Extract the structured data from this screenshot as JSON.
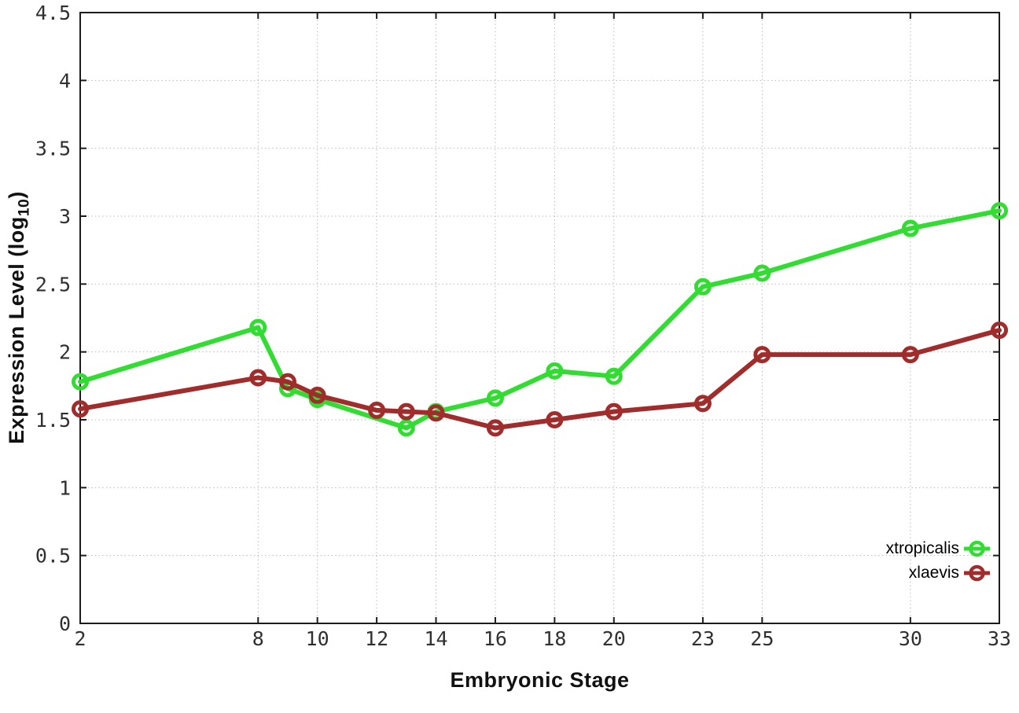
{
  "chart_data": {
    "type": "line",
    "xlabel": "Embryonic Stage",
    "ylabel": {
      "prefix": "Expression Level (log",
      "sub": "10",
      "suffix": ")"
    },
    "xlim": [
      2,
      33
    ],
    "ylim": [
      0,
      4.5
    ],
    "x_ticks": [
      2,
      8,
      10,
      12,
      14,
      16,
      18,
      20,
      23,
      25,
      30,
      33
    ],
    "y_ticks": [
      0,
      0.5,
      1,
      1.5,
      2,
      2.5,
      3,
      3.5,
      4,
      4.5
    ],
    "grid": true,
    "legend_position": "bottom-right",
    "series": [
      {
        "name": "xtropicalis",
        "color": "#32dc32",
        "marker": "open-circle",
        "x": [
          2,
          8,
          9,
          10,
          13,
          14,
          16,
          18,
          20,
          23,
          25,
          30,
          33
        ],
        "y": [
          1.78,
          2.18,
          1.73,
          1.65,
          1.44,
          1.56,
          1.66,
          1.86,
          1.82,
          2.48,
          2.58,
          2.91,
          3.04
        ]
      },
      {
        "name": "xlaevis",
        "color": "#a02c2c",
        "marker": "open-circle",
        "x": [
          2,
          8,
          9,
          10,
          12,
          13,
          14,
          16,
          18,
          20,
          23,
          25,
          30,
          33
        ],
        "y": [
          1.58,
          1.81,
          1.78,
          1.68,
          1.57,
          1.56,
          1.55,
          1.44,
          1.5,
          1.56,
          1.62,
          1.98,
          1.98,
          2.16
        ]
      }
    ],
    "colors": {
      "background": "#ffffff",
      "border": "#1c1c1c",
      "grid": "#b8b8b8",
      "tick_text": "#303030"
    }
  }
}
